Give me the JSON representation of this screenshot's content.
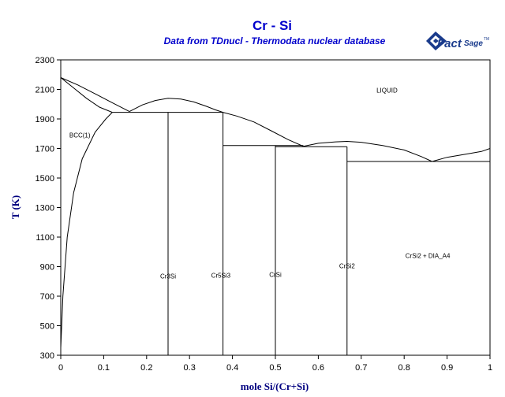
{
  "chart_data": {
    "type": "line",
    "title": "Cr - Si",
    "subtitle": "Data from TDnucl - Thermodata nuclear database",
    "xlabel": "mole Si/(Cr+Si)",
    "ylabel": "T (K)",
    "xlim": [
      0,
      1
    ],
    "ylim": [
      300,
      2300
    ],
    "x_ticks": [
      0,
      0.1,
      0.2,
      0.3,
      0.4,
      0.5,
      0.6,
      0.7,
      0.8,
      0.9,
      1
    ],
    "x_tick_labels": [
      "0",
      "0.1",
      "0.2",
      "0.3",
      "0.4",
      "0.5",
      "0.6",
      "0.7",
      "0.8",
      "0.9",
      "1"
    ],
    "y_ticks": [
      300,
      500,
      700,
      900,
      1100,
      1300,
      1500,
      1700,
      1900,
      2100,
      2300
    ],
    "y_tick_labels": [
      "300",
      "500",
      "700",
      "900",
      "1100",
      "1300",
      "1500",
      "1700",
      "1900",
      "2100",
      "2300"
    ],
    "grid": false,
    "lines": [
      {
        "points": [
          [
            0,
            2180
          ],
          [
            0.04,
            2130
          ],
          [
            0.08,
            2070
          ],
          [
            0.12,
            2010
          ],
          [
            0.16,
            1950
          ]
        ]
      },
      {
        "points": [
          [
            0,
            2180
          ],
          [
            0.03,
            2110
          ],
          [
            0.06,
            2040
          ],
          [
            0.09,
            1980
          ],
          [
            0.12,
            1945
          ]
        ]
      },
      {
        "points": [
          [
            0,
            350
          ],
          [
            0.005,
            700
          ],
          [
            0.015,
            1100
          ],
          [
            0.03,
            1400
          ],
          [
            0.05,
            1630
          ],
          [
            0.08,
            1810
          ],
          [
            0.105,
            1900
          ],
          [
            0.12,
            1945
          ]
        ]
      },
      {
        "points": [
          [
            0.12,
            1945
          ],
          [
            0.378,
            1945
          ]
        ]
      },
      {
        "points": [
          [
            0.16,
            1950
          ],
          [
            0.19,
            1995
          ],
          [
            0.22,
            2025
          ],
          [
            0.25,
            2040
          ],
          [
            0.28,
            2035
          ],
          [
            0.31,
            2015
          ],
          [
            0.34,
            1985
          ],
          [
            0.36,
            1962
          ],
          [
            0.378,
            1945
          ]
        ]
      },
      {
        "points": [
          [
            0.378,
            1945
          ],
          [
            0.41,
            1920
          ],
          [
            0.45,
            1880
          ],
          [
            0.49,
            1820
          ],
          [
            0.53,
            1760
          ],
          [
            0.565,
            1715
          ]
        ]
      },
      {
        "points": [
          [
            0.378,
            1720
          ],
          [
            0.565,
            1720
          ]
        ]
      },
      {
        "points": [
          [
            0.5,
            1712
          ],
          [
            0.667,
            1712
          ]
        ]
      },
      {
        "points": [
          [
            0.565,
            1715
          ],
          [
            0.6,
            1735
          ],
          [
            0.64,
            1745
          ],
          [
            0.667,
            1748
          ],
          [
            0.7,
            1742
          ],
          [
            0.75,
            1720
          ],
          [
            0.8,
            1690
          ],
          [
            0.84,
            1645
          ],
          [
            0.865,
            1612
          ]
        ]
      },
      {
        "points": [
          [
            0.667,
            1612
          ],
          [
            1,
            1612
          ]
        ]
      },
      {
        "points": [
          [
            0.865,
            1612
          ],
          [
            0.9,
            1640
          ],
          [
            0.95,
            1665
          ],
          [
            0.98,
            1680
          ],
          [
            1,
            1700
          ]
        ]
      },
      {
        "points": [
          [
            0.25,
            300
          ],
          [
            0.25,
            1945
          ]
        ]
      },
      {
        "points": [
          [
            0.378,
            300
          ],
          [
            0.378,
            1945
          ]
        ]
      },
      {
        "points": [
          [
            0.5,
            300
          ],
          [
            0.5,
            1720
          ]
        ]
      },
      {
        "points": [
          [
            0.667,
            300
          ],
          [
            0.667,
            1712
          ]
        ]
      }
    ],
    "annotations": [
      {
        "text": "LIQUID",
        "x": 0.76,
        "y": 2080,
        "anchor": "middle"
      },
      {
        "text": "BCC(1)",
        "x": 0.02,
        "y": 1775,
        "anchor": "start"
      },
      {
        "text": "Cr3Si",
        "x": 0.25,
        "y": 820,
        "anchor": "middle"
      },
      {
        "text": "Cr5Si3",
        "x": 0.373,
        "y": 825,
        "anchor": "middle"
      },
      {
        "text": "CrSi",
        "x": 0.5,
        "y": 830,
        "anchor": "middle"
      },
      {
        "text": "CrSi2",
        "x": 0.667,
        "y": 890,
        "anchor": "middle"
      },
      {
        "text": "CrSi2 + DIA_A4",
        "x": 0.855,
        "y": 960,
        "anchor": "middle"
      }
    ],
    "line_color": "#000000"
  },
  "logo": {
    "text_main": "Fact",
    "text_sub": "Sage",
    "text_tm": "TM",
    "color": "#1a3b8c"
  }
}
